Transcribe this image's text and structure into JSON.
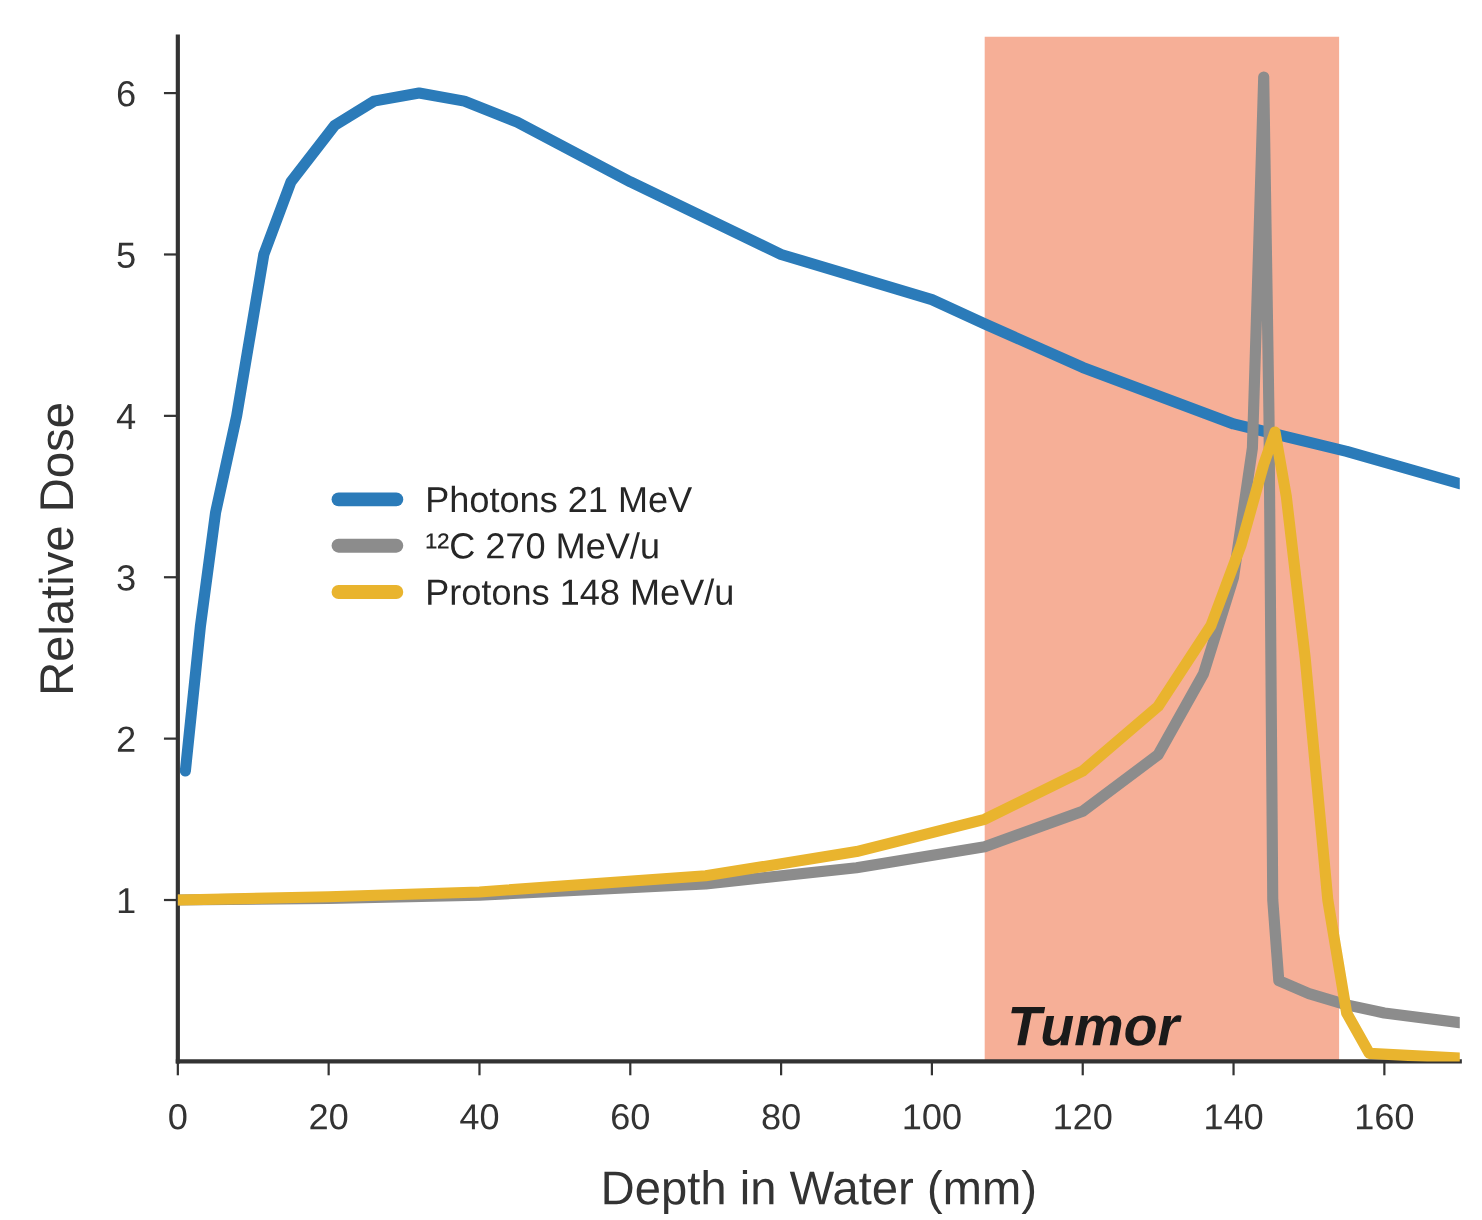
{
  "chart_data": {
    "type": "line",
    "xlabel": "Depth in Water (mm)",
    "ylabel": "Relative Dose",
    "xlim": [
      0,
      170
    ],
    "ylim": [
      0,
      6.35
    ],
    "xticks": [
      0,
      20,
      40,
      60,
      80,
      100,
      120,
      140,
      160
    ],
    "yticks": [
      1,
      2,
      3,
      4,
      5,
      6
    ],
    "grid": false,
    "legend": "left",
    "marker": "none",
    "line_style": "solid",
    "bands": [
      {
        "axis": "x",
        "from": 107,
        "to": 154,
        "label": "Tumor",
        "color": "#f5a68c"
      }
    ],
    "series": [
      {
        "name": "Photons 21 MeV",
        "color": "#2b7bb9",
        "x": [
          1,
          3,
          5,
          7.8,
          11.4,
          15,
          20.8,
          26,
          32,
          38,
          45,
          60,
          80,
          100,
          107,
          120,
          140,
          155,
          170
        ],
        "values": [
          1.8,
          2.7,
          3.4,
          4.0,
          5.0,
          5.45,
          5.8,
          5.95,
          6.0,
          5.95,
          5.82,
          5.45,
          5.0,
          4.72,
          4.57,
          4.3,
          3.95,
          3.78,
          3.58
        ]
      },
      {
        "name": "¹²C 270 MeV/u",
        "color": "#8c8c8c",
        "x": [
          0,
          20,
          40,
          70,
          90,
          107,
          120,
          130,
          136,
          140,
          142.5,
          143.3,
          144,
          144.7,
          145.2,
          146,
          150,
          155,
          160,
          170
        ],
        "values": [
          1.0,
          1.01,
          1.03,
          1.1,
          1.2,
          1.33,
          1.55,
          1.9,
          2.4,
          3.0,
          3.8,
          5.0,
          6.1,
          4.0,
          1.0,
          0.5,
          0.42,
          0.35,
          0.3,
          0.24
        ]
      },
      {
        "name": "Protons 148 MeV/u",
        "color": "#e9b42e",
        "x": [
          0,
          20,
          40,
          70,
          90,
          107,
          120,
          130,
          137,
          141,
          144,
          145.5,
          147,
          149.5,
          152.5,
          155,
          158,
          170
        ],
        "values": [
          1.0,
          1.02,
          1.05,
          1.15,
          1.3,
          1.5,
          1.8,
          2.2,
          2.7,
          3.2,
          3.7,
          3.9,
          3.5,
          2.5,
          1.0,
          0.3,
          0.05,
          0.02
        ]
      }
    ]
  }
}
